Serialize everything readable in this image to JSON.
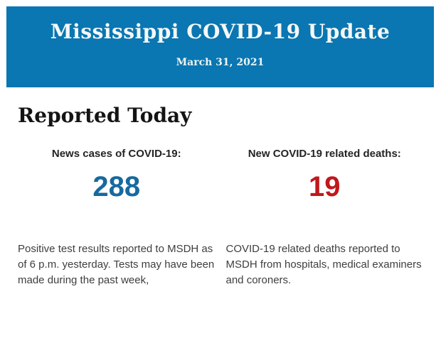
{
  "banner": {
    "title": "Mississippi COVID-19 Update",
    "date": "March 31, 2021",
    "background_color": "#0a76b2",
    "text_color": "#f4f8f6"
  },
  "main": {
    "heading": "Reported Today",
    "stats": [
      {
        "label": "News cases of COVID-19:",
        "value": "288",
        "value_color": "#17699f",
        "description": "Positive test results reported to MSDH as of 6 p.m. yesterday. Tests may have been made during the past week,"
      },
      {
        "label": "New COVID-19 related deaths:",
        "value": "19",
        "value_color": "#c0181c",
        "description": "COVID-19 related deaths reported to MSDH from hospitals, medical examiners and coroners."
      }
    ]
  }
}
